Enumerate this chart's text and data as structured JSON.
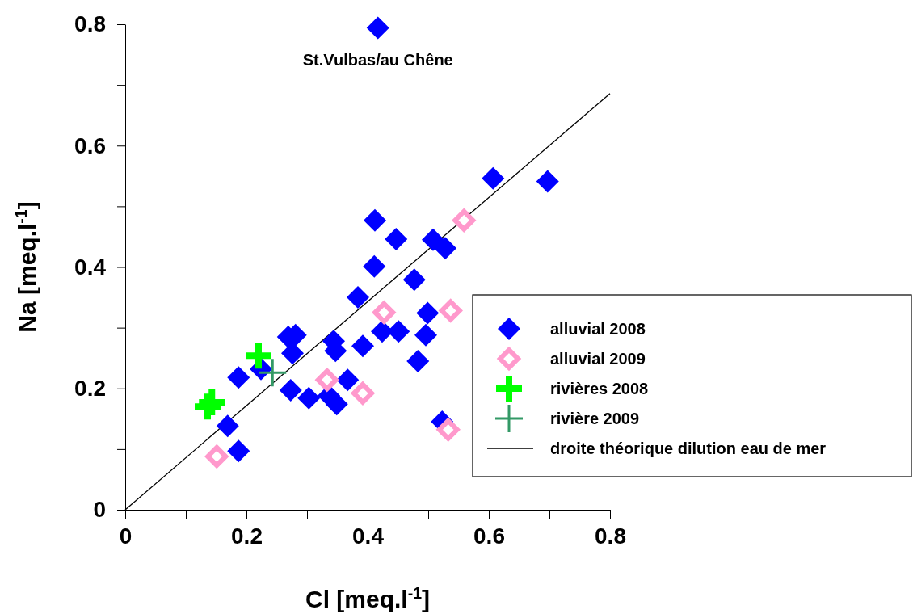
{
  "chart_data": {
    "type": "scatter",
    "xlabel": "Cl [meq.l$^{-1}$]",
    "ylabel": "Na [meq.l$^{-1}$]",
    "xlim": [
      0,
      0.8
    ],
    "ylim": [
      0,
      0.8
    ],
    "xticks": [
      0,
      {
        "value": 0.1,
        "label": null
      },
      0.2,
      {
        "value": 0.3,
        "label": null
      },
      0.4,
      {
        "value": 0.5,
        "label": null
      },
      0.6,
      {
        "value": 0.7,
        "label": null
      },
      0.8
    ],
    "yticks": [
      0,
      {
        "value": 0.1,
        "label": null
      },
      0.2,
      {
        "value": 0.3,
        "label": null
      },
      0.4,
      {
        "value": 0.5,
        "label": null
      },
      0.6,
      {
        "value": 0.7,
        "label": null
      },
      0.8
    ],
    "grid": false,
    "legend": "right",
    "annotations": [
      {
        "text": "St.Vulbas/au Chêne",
        "x": 0.417,
        "y": 0.794
      }
    ],
    "series": [
      {
        "name": "alluvial 2008",
        "color": "#0000ff",
        "marker": "diamond",
        "x": [
          0.417,
          0.607,
          0.697,
          0.412,
          0.447,
          0.411,
          0.508,
          0.528,
          0.477,
          0.384,
          0.499,
          0.496,
          0.483,
          0.424,
          0.451,
          0.392,
          0.344,
          0.347,
          0.367,
          0.349,
          0.523,
          0.281,
          0.276,
          0.269,
          0.273,
          0.303,
          0.336,
          0.187,
          0.169,
          0.187,
          0.224
        ],
        "values": [
          0.794,
          0.546,
          0.541,
          0.477,
          0.446,
          0.401,
          0.445,
          0.431,
          0.379,
          0.35,
          0.324,
          0.288,
          0.245,
          0.294,
          0.294,
          0.27,
          0.278,
          0.262,
          0.214,
          0.174,
          0.145,
          0.288,
          0.258,
          0.285,
          0.197,
          0.184,
          0.188,
          0.218,
          0.138,
          0.097,
          0.232
        ]
      },
      {
        "name": "alluvial 2009",
        "color": "#ff99cc",
        "marker": "diamond",
        "x": [
          0.151,
          0.333,
          0.392,
          0.427,
          0.537,
          0.559,
          0.533
        ],
        "values": [
          0.088,
          0.214,
          0.192,
          0.325,
          0.328,
          0.477,
          0.132
        ]
      },
      {
        "name": "rivières 2008",
        "color": "#00ff00",
        "marker": "cross",
        "x": [
          0.136,
          0.143,
          0.22
        ],
        "values": [
          0.17,
          0.177,
          0.254
        ]
      },
      {
        "name": "rivière 2009",
        "color": "#339966",
        "marker": "cross",
        "x": [
          0.243
        ],
        "values": [
          0.226
        ]
      },
      {
        "name": "droite théorique dilution eau de mer",
        "type": "line",
        "color": "#000000",
        "marker": "none",
        "line_style": "solid",
        "x": [
          0,
          0.8
        ],
        "values": [
          0,
          0.686
        ]
      }
    ]
  }
}
